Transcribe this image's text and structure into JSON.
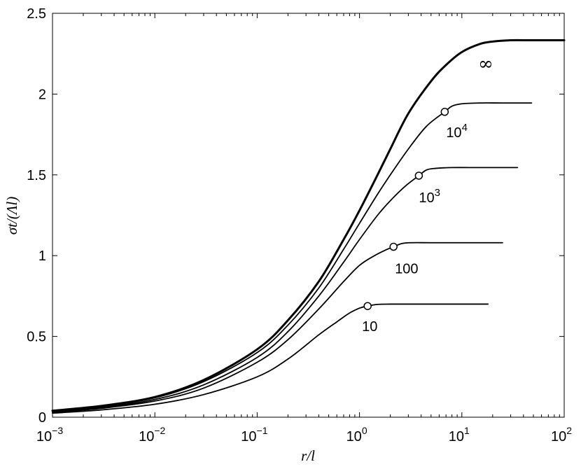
{
  "chart_data": {
    "type": "line",
    "title": "",
    "xlabel": "r/l",
    "ylabel": "σt/(Λl)",
    "xscale": "log",
    "xlim": [
      0.001,
      100
    ],
    "ylim": [
      0,
      2.5
    ],
    "grid": false,
    "legend": "none",
    "x_ticks": [
      {
        "base": "10",
        "exp": "−3",
        "value": 0.001
      },
      {
        "base": "10",
        "exp": "−2",
        "value": 0.01
      },
      {
        "base": "10",
        "exp": "−1",
        "value": 0.1
      },
      {
        "base": "10",
        "exp": "0",
        "value": 1
      },
      {
        "base": "10",
        "exp": "1",
        "value": 10
      },
      {
        "base": "10",
        "exp": "2",
        "value": 100
      }
    ],
    "y_ticks": [
      "0",
      "0.5",
      "1",
      "1.5",
      "2",
      "2.5"
    ],
    "series": [
      {
        "name": "∞",
        "bold": true,
        "x": [
          0.001,
          0.003,
          0.01,
          0.03,
          0.1,
          0.2,
          0.4,
          0.7,
          1,
          1.5,
          2,
          3,
          5,
          7,
          10,
          15,
          20,
          30,
          45,
          60,
          100
        ],
        "y": [
          0.04,
          0.07,
          0.125,
          0.23,
          0.42,
          0.6,
          0.84,
          1.1,
          1.28,
          1.5,
          1.66,
          1.88,
          2.08,
          2.18,
          2.26,
          2.31,
          2.325,
          2.333,
          2.333,
          2.333,
          2.333
        ],
        "label": "∞"
      },
      {
        "name": "10⁴",
        "x": [
          0.001,
          0.003,
          0.01,
          0.03,
          0.1,
          0.2,
          0.4,
          0.7,
          1,
          1.5,
          2,
          3,
          4.5,
          6.8,
          8,
          10,
          15,
          25,
          48
        ],
        "y": [
          0.035,
          0.065,
          0.12,
          0.22,
          0.4,
          0.57,
          0.8,
          1.04,
          1.2,
          1.38,
          1.5,
          1.66,
          1.8,
          1.89,
          1.925,
          1.94,
          1.945,
          1.945,
          1.945
        ],
        "marker": [
          6.8,
          1.89
        ],
        "label_base": "10",
        "label_exp": "4"
      },
      {
        "name": "10³",
        "x": [
          0.001,
          0.003,
          0.01,
          0.03,
          0.1,
          0.2,
          0.4,
          0.7,
          1,
          1.5,
          2,
          2.8,
          3.8,
          4.5,
          5.5,
          8,
          15,
          35
        ],
        "y": [
          0.033,
          0.06,
          0.11,
          0.2,
          0.37,
          0.53,
          0.75,
          0.96,
          1.1,
          1.25,
          1.34,
          1.43,
          1.495,
          1.53,
          1.54,
          1.545,
          1.545,
          1.545
        ],
        "marker": [
          3.8,
          1.495
        ],
        "label_base": "10",
        "label_exp": "3"
      },
      {
        "name": "100",
        "x": [
          0.001,
          0.003,
          0.01,
          0.03,
          0.1,
          0.2,
          0.4,
          0.7,
          1,
          1.4,
          1.8,
          2.15,
          2.6,
          3.2,
          5,
          10,
          25
        ],
        "y": [
          0.03,
          0.055,
          0.1,
          0.18,
          0.34,
          0.48,
          0.67,
          0.84,
          0.94,
          1.0,
          1.035,
          1.055,
          1.075,
          1.08,
          1.08,
          1.08,
          1.08
        ],
        "marker": [
          2.15,
          1.055
        ],
        "label": "100"
      },
      {
        "name": "10",
        "x": [
          0.001,
          0.003,
          0.01,
          0.03,
          0.1,
          0.2,
          0.4,
          0.6,
          0.8,
          1,
          1.2,
          1.5,
          2,
          4,
          8,
          18
        ],
        "y": [
          0.025,
          0.045,
          0.08,
          0.14,
          0.25,
          0.36,
          0.51,
          0.59,
          0.645,
          0.675,
          0.688,
          0.698,
          0.7,
          0.7,
          0.7,
          0.7
        ],
        "marker": [
          1.2,
          0.688
        ],
        "label": "10"
      }
    ]
  }
}
